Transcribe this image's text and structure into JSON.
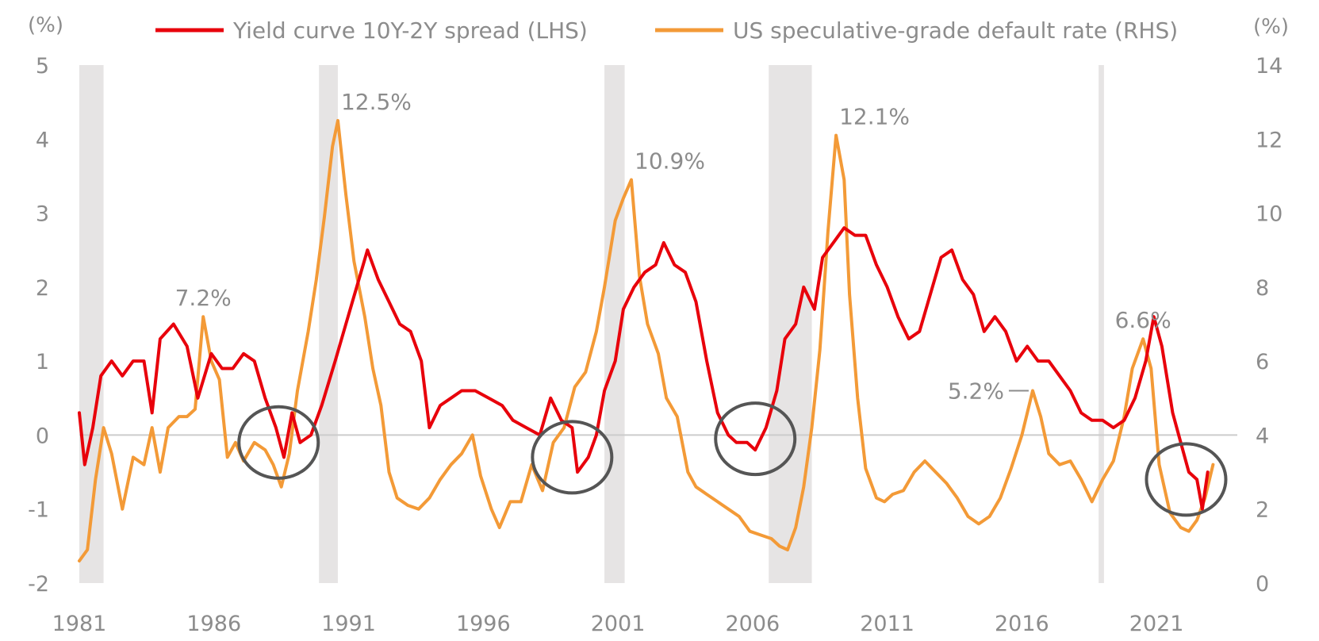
{
  "chart_data": {
    "type": "line",
    "title": "",
    "x_ticks": [
      "1981",
      "1986",
      "1991",
      "1996",
      "2001",
      "2006",
      "2011",
      "2016",
      "2021"
    ],
    "x_range": [
      1981,
      2024
    ],
    "y_left": {
      "unit": "(%)",
      "range": [
        -2,
        5
      ],
      "ticks": [
        "5",
        "4",
        "3",
        "2",
        "1",
        "0",
        "-1",
        "-2"
      ]
    },
    "y_right": {
      "unit": "(%)",
      "range": [
        0,
        14
      ],
      "ticks": [
        "14",
        "12",
        "10",
        "8",
        "6",
        "4",
        "2",
        "0"
      ]
    },
    "zero_line": true,
    "recessions": [
      [
        1981.0,
        1981.9
      ],
      [
        1989.9,
        1990.6
      ],
      [
        2000.5,
        2001.25
      ],
      [
        2006.6,
        2008.2
      ],
      [
        2018.85,
        2019.05
      ]
    ],
    "highlight_ellipses": [
      {
        "x": 1988.4,
        "y_left": -0.1
      },
      {
        "x": 1999.3,
        "y_left": -0.3
      },
      {
        "x": 2006.1,
        "y_left": -0.05
      },
      {
        "x": 2022.1,
        "y_left": -0.6
      }
    ],
    "legend": {
      "position": "top"
    },
    "series": [
      {
        "name": "Yield curve 10Y-2Y spread (LHS)",
        "axis": "left",
        "color": "#e8000b",
        "points": [
          [
            1981.0,
            0.3
          ],
          [
            1981.2,
            -0.4
          ],
          [
            1981.5,
            0.1
          ],
          [
            1981.8,
            0.8
          ],
          [
            1982.2,
            1.0
          ],
          [
            1982.6,
            0.8
          ],
          [
            1983.0,
            1.0
          ],
          [
            1983.4,
            1.0
          ],
          [
            1983.7,
            0.3
          ],
          [
            1984.0,
            1.3
          ],
          [
            1984.5,
            1.5
          ],
          [
            1985.0,
            1.2
          ],
          [
            1985.4,
            0.5
          ],
          [
            1985.9,
            1.1
          ],
          [
            1986.3,
            0.9
          ],
          [
            1986.7,
            0.9
          ],
          [
            1987.1,
            1.1
          ],
          [
            1987.5,
            1.0
          ],
          [
            1987.9,
            0.5
          ],
          [
            1988.3,
            0.1
          ],
          [
            1988.6,
            -0.3
          ],
          [
            1988.9,
            0.3
          ],
          [
            1989.2,
            -0.1
          ],
          [
            1989.6,
            0.0
          ],
          [
            1990.0,
            0.4
          ],
          [
            1990.5,
            1.0
          ],
          [
            1990.9,
            1.5
          ],
          [
            1991.3,
            2.0
          ],
          [
            1991.7,
            2.5
          ],
          [
            1992.1,
            2.1
          ],
          [
            1992.5,
            1.8
          ],
          [
            1992.9,
            1.5
          ],
          [
            1993.3,
            1.4
          ],
          [
            1993.7,
            1.0
          ],
          [
            1994.0,
            0.1
          ],
          [
            1994.4,
            0.4
          ],
          [
            1994.8,
            0.5
          ],
          [
            1995.2,
            0.6
          ],
          [
            1995.7,
            0.6
          ],
          [
            1996.2,
            0.5
          ],
          [
            1996.7,
            0.4
          ],
          [
            1997.1,
            0.2
          ],
          [
            1997.6,
            0.1
          ],
          [
            1998.1,
            0.0
          ],
          [
            1998.5,
            0.5
          ],
          [
            1998.9,
            0.2
          ],
          [
            1999.3,
            0.1
          ],
          [
            1999.5,
            -0.5
          ],
          [
            1999.9,
            -0.3
          ],
          [
            2000.2,
            0.0
          ],
          [
            2000.5,
            0.6
          ],
          [
            2000.9,
            1.0
          ],
          [
            2001.2,
            1.7
          ],
          [
            2001.6,
            2.0
          ],
          [
            2002.0,
            2.2
          ],
          [
            2002.4,
            2.3
          ],
          [
            2002.7,
            2.6
          ],
          [
            2003.1,
            2.3
          ],
          [
            2003.5,
            2.2
          ],
          [
            2003.9,
            1.8
          ],
          [
            2004.3,
            1.0
          ],
          [
            2004.7,
            0.3
          ],
          [
            2005.1,
            0.0
          ],
          [
            2005.4,
            -0.1
          ],
          [
            2005.8,
            -0.1
          ],
          [
            2006.1,
            -0.2
          ],
          [
            2006.5,
            0.1
          ],
          [
            2006.9,
            0.6
          ],
          [
            2007.2,
            1.3
          ],
          [
            2007.6,
            1.5
          ],
          [
            2007.9,
            2.0
          ],
          [
            2008.3,
            1.7
          ],
          [
            2008.6,
            2.4
          ],
          [
            2009.0,
            2.6
          ],
          [
            2009.4,
            2.8
          ],
          [
            2009.8,
            2.7
          ],
          [
            2010.2,
            2.7
          ],
          [
            2010.6,
            2.3
          ],
          [
            2011.0,
            2.0
          ],
          [
            2011.4,
            1.6
          ],
          [
            2011.8,
            1.3
          ],
          [
            2012.2,
            1.4
          ],
          [
            2012.6,
            1.9
          ],
          [
            2013.0,
            2.4
          ],
          [
            2013.4,
            2.5
          ],
          [
            2013.8,
            2.1
          ],
          [
            2014.2,
            1.9
          ],
          [
            2014.6,
            1.4
          ],
          [
            2015.0,
            1.6
          ],
          [
            2015.4,
            1.4
          ],
          [
            2015.8,
            1.0
          ],
          [
            2016.2,
            1.2
          ],
          [
            2016.6,
            1.0
          ],
          [
            2017.0,
            1.0
          ],
          [
            2017.4,
            0.8
          ],
          [
            2017.8,
            0.6
          ],
          [
            2018.2,
            0.3
          ],
          [
            2018.6,
            0.2
          ],
          [
            2019.0,
            0.2
          ],
          [
            2019.4,
            0.1
          ],
          [
            2019.8,
            0.2
          ],
          [
            2020.2,
            0.5
          ],
          [
            2020.6,
            1.0
          ],
          [
            2020.9,
            1.6
          ],
          [
            2021.2,
            1.2
          ],
          [
            2021.6,
            0.3
          ],
          [
            2021.9,
            -0.1
          ],
          [
            2022.2,
            -0.5
          ],
          [
            2022.5,
            -0.6
          ],
          [
            2022.7,
            -1.0
          ],
          [
            2022.9,
            -0.5
          ]
        ]
      },
      {
        "name": "US speculative-grade default rate (RHS)",
        "axis": "right",
        "color": "#f39a37",
        "points": [
          [
            1981.0,
            0.6
          ],
          [
            1981.3,
            0.9
          ],
          [
            1981.6,
            2.8
          ],
          [
            1981.9,
            4.2
          ],
          [
            1982.2,
            3.5
          ],
          [
            1982.6,
            2.0
          ],
          [
            1983.0,
            3.4
          ],
          [
            1983.4,
            3.2
          ],
          [
            1983.7,
            4.2
          ],
          [
            1984.0,
            3.0
          ],
          [
            1984.3,
            4.2
          ],
          [
            1984.7,
            4.5
          ],
          [
            1985.0,
            4.5
          ],
          [
            1985.3,
            4.7
          ],
          [
            1985.6,
            7.2
          ],
          [
            1985.9,
            6.0
          ],
          [
            1986.2,
            5.5
          ],
          [
            1986.5,
            3.4
          ],
          [
            1986.8,
            3.8
          ],
          [
            1987.1,
            3.3
          ],
          [
            1987.5,
            3.8
          ],
          [
            1987.9,
            3.6
          ],
          [
            1988.2,
            3.2
          ],
          [
            1988.5,
            2.6
          ],
          [
            1988.8,
            3.5
          ],
          [
            1989.1,
            5.2
          ],
          [
            1989.5,
            6.8
          ],
          [
            1989.8,
            8.2
          ],
          [
            1990.1,
            9.9
          ],
          [
            1990.4,
            11.8
          ],
          [
            1990.6,
            12.5
          ],
          [
            1990.9,
            10.5
          ],
          [
            1991.2,
            8.7
          ],
          [
            1991.6,
            7.2
          ],
          [
            1991.9,
            5.8
          ],
          [
            1992.2,
            4.8
          ],
          [
            1992.5,
            3.0
          ],
          [
            1992.8,
            2.3
          ],
          [
            1993.2,
            2.1
          ],
          [
            1993.6,
            2.0
          ],
          [
            1994.0,
            2.3
          ],
          [
            1994.4,
            2.8
          ],
          [
            1994.8,
            3.2
          ],
          [
            1995.2,
            3.5
          ],
          [
            1995.6,
            4.0
          ],
          [
            1995.9,
            2.9
          ],
          [
            1996.3,
            2.0
          ],
          [
            1996.6,
            1.5
          ],
          [
            1997.0,
            2.2
          ],
          [
            1997.4,
            2.2
          ],
          [
            1997.8,
            3.2
          ],
          [
            1998.2,
            2.5
          ],
          [
            1998.6,
            3.8
          ],
          [
            1999.0,
            4.2
          ],
          [
            1999.4,
            5.3
          ],
          [
            1999.8,
            5.7
          ],
          [
            2000.2,
            6.8
          ],
          [
            2000.5,
            8.0
          ],
          [
            2000.9,
            9.8
          ],
          [
            2001.2,
            10.4
          ],
          [
            2001.5,
            10.9
          ],
          [
            2001.8,
            8.3
          ],
          [
            2002.1,
            7.0
          ],
          [
            2002.5,
            6.2
          ],
          [
            2002.8,
            5.0
          ],
          [
            2003.2,
            4.5
          ],
          [
            2003.6,
            3.0
          ],
          [
            2003.9,
            2.6
          ],
          [
            2004.3,
            2.4
          ],
          [
            2004.7,
            2.2
          ],
          [
            2005.1,
            2.0
          ],
          [
            2005.5,
            1.8
          ],
          [
            2005.9,
            1.4
          ],
          [
            2006.3,
            1.3
          ],
          [
            2006.7,
            1.2
          ],
          [
            2007.0,
            1.0
          ],
          [
            2007.3,
            0.9
          ],
          [
            2007.6,
            1.5
          ],
          [
            2007.9,
            2.6
          ],
          [
            2008.2,
            4.2
          ],
          [
            2008.5,
            6.3
          ],
          [
            2008.8,
            9.5
          ],
          [
            2009.1,
            12.1
          ],
          [
            2009.4,
            10.9
          ],
          [
            2009.6,
            7.8
          ],
          [
            2009.9,
            5.0
          ],
          [
            2010.2,
            3.1
          ],
          [
            2010.6,
            2.3
          ],
          [
            2010.9,
            2.2
          ],
          [
            2011.2,
            2.4
          ],
          [
            2011.6,
            2.5
          ],
          [
            2012.0,
            3.0
          ],
          [
            2012.4,
            3.3
          ],
          [
            2012.8,
            3.0
          ],
          [
            2013.2,
            2.7
          ],
          [
            2013.6,
            2.3
          ],
          [
            2014.0,
            1.8
          ],
          [
            2014.4,
            1.6
          ],
          [
            2014.8,
            1.8
          ],
          [
            2015.2,
            2.3
          ],
          [
            2015.6,
            3.1
          ],
          [
            2016.0,
            4.0
          ],
          [
            2016.4,
            5.2
          ],
          [
            2016.7,
            4.5
          ],
          [
            2017.0,
            3.5
          ],
          [
            2017.4,
            3.2
          ],
          [
            2017.8,
            3.3
          ],
          [
            2018.2,
            2.8
          ],
          [
            2018.6,
            2.2
          ],
          [
            2019.0,
            2.8
          ],
          [
            2019.4,
            3.3
          ],
          [
            2019.8,
            4.5
          ],
          [
            2020.1,
            5.8
          ],
          [
            2020.5,
            6.6
          ],
          [
            2020.8,
            5.8
          ],
          [
            2021.1,
            3.2
          ],
          [
            2021.5,
            1.9
          ],
          [
            2021.9,
            1.5
          ],
          [
            2022.2,
            1.4
          ],
          [
            2022.5,
            1.7
          ],
          [
            2022.8,
            2.3
          ],
          [
            2023.1,
            3.2
          ]
        ]
      }
    ],
    "annotations": [
      {
        "text": "7.2%",
        "x": 1985.6,
        "y_right": 7.2
      },
      {
        "text": "12.5%",
        "x": 1990.6,
        "y_right": 12.5
      },
      {
        "text": "10.9%",
        "x": 2001.5,
        "y_right": 10.9
      },
      {
        "text": "12.1%",
        "x": 2009.1,
        "y_right": 12.1
      },
      {
        "text": "5.2%",
        "x": 2016.4,
        "y_right": 5.2
      },
      {
        "text": "6.6%",
        "x": 2020.5,
        "y_right": 6.6
      }
    ]
  }
}
